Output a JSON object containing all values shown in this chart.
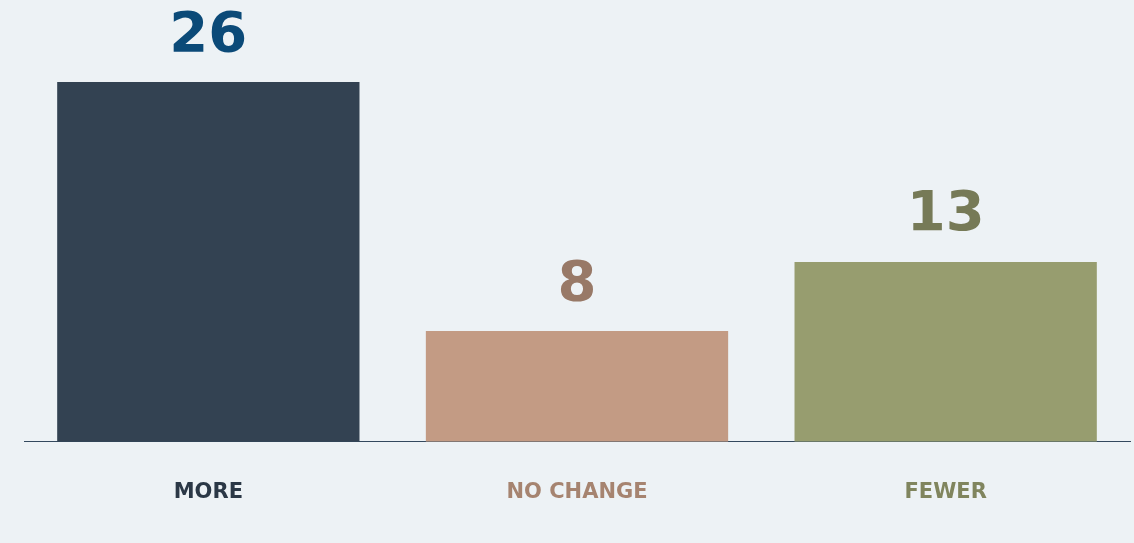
{
  "chart_data": {
    "type": "bar",
    "categories": [
      "MORE",
      "NO CHANGE",
      "FEWER"
    ],
    "values": [
      26,
      8,
      13
    ],
    "colors": [
      "#334252",
      "#c39b84",
      "#979d6f"
    ],
    "data_labels": true,
    "grid": false
  }
}
